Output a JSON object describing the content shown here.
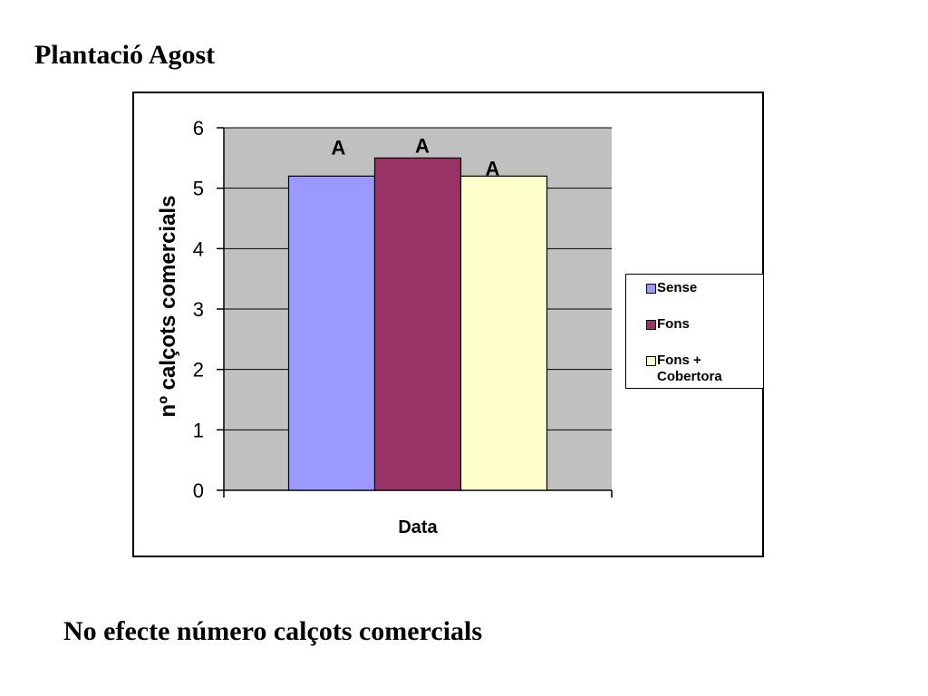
{
  "slide": {
    "title": "Plantació Agost",
    "caption": "No efecte número calçots comercials"
  },
  "chart_data": {
    "type": "bar",
    "categories": [
      "Data"
    ],
    "series": [
      {
        "name": "Sense",
        "values": [
          5.2
        ],
        "color": "#9999ff",
        "label": "A"
      },
      {
        "name": "Fons",
        "values": [
          5.5
        ],
        "color": "#993366",
        "label": "A"
      },
      {
        "name": "Fons + Cobertora",
        "values": [
          5.2
        ],
        "color": "#ffffcc",
        "label": "A"
      }
    ],
    "xlabel": "Data",
    "ylabel": "nº calçots comercials",
    "ylim": [
      0,
      6
    ],
    "yticks": [
      "0",
      "1",
      "2",
      "3",
      "4",
      "5",
      "6"
    ],
    "grid": true,
    "plot_background": "#c0c0c0",
    "legend_position": "right"
  },
  "legend": {
    "items": [
      {
        "label": "Sense",
        "color": "#9999ff"
      },
      {
        "label": "Fons",
        "color": "#993366"
      },
      {
        "label": "Fons +\nCobertora",
        "color": "#ffffcc"
      }
    ]
  }
}
